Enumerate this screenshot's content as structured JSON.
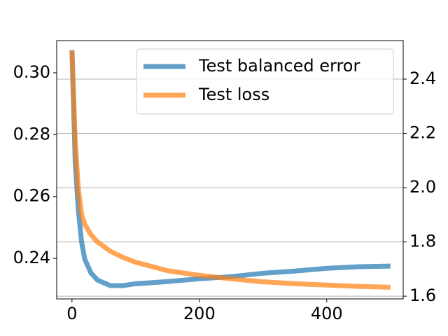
{
  "chart_data": {
    "type": "line",
    "x": [
      0,
      5,
      10,
      15,
      20,
      30,
      40,
      60,
      80,
      100,
      150,
      200,
      250,
      300,
      350,
      400,
      450,
      500
    ],
    "series": [
      {
        "name": "Test balanced error",
        "color": "#1f77b4",
        "values": [
          0.3073,
          0.2715,
          0.2556,
          0.2454,
          0.2398,
          0.2352,
          0.233,
          0.2312,
          0.2312,
          0.2318,
          0.2325,
          0.2334,
          0.2341,
          0.2352,
          0.2359,
          0.2368,
          0.2373,
          0.2375
        ]
      },
      {
        "name": "Test loss",
        "color": "#ff7f0e",
        "axis": "y2",
        "values": [
          2.506,
          2.174,
          1.995,
          1.903,
          1.865,
          1.826,
          1.8,
          1.766,
          1.743,
          1.725,
          1.694,
          1.677,
          1.664,
          1.653,
          1.646,
          1.641,
          1.636,
          1.633
        ]
      }
    ],
    "xlim": [
      -24,
      520
    ],
    "xticks": [
      0,
      200,
      400
    ],
    "ylim": [
      0.2269,
      0.3104
    ],
    "yticks": [
      {
        "value": 0.24,
        "label": "0.24"
      },
      {
        "value": 0.26,
        "label": "0.26"
      },
      {
        "value": 0.28,
        "label": "0.28"
      },
      {
        "value": 0.3,
        "label": "0.30"
      }
    ],
    "y2lim": [
      1.59,
      2.542
    ],
    "y2ticks": [
      1.6,
      1.8,
      {
        "value": 2.0,
        "label": "2.0"
      },
      2.2,
      2.4
    ],
    "grid": "y2",
    "legend": "upper right"
  }
}
